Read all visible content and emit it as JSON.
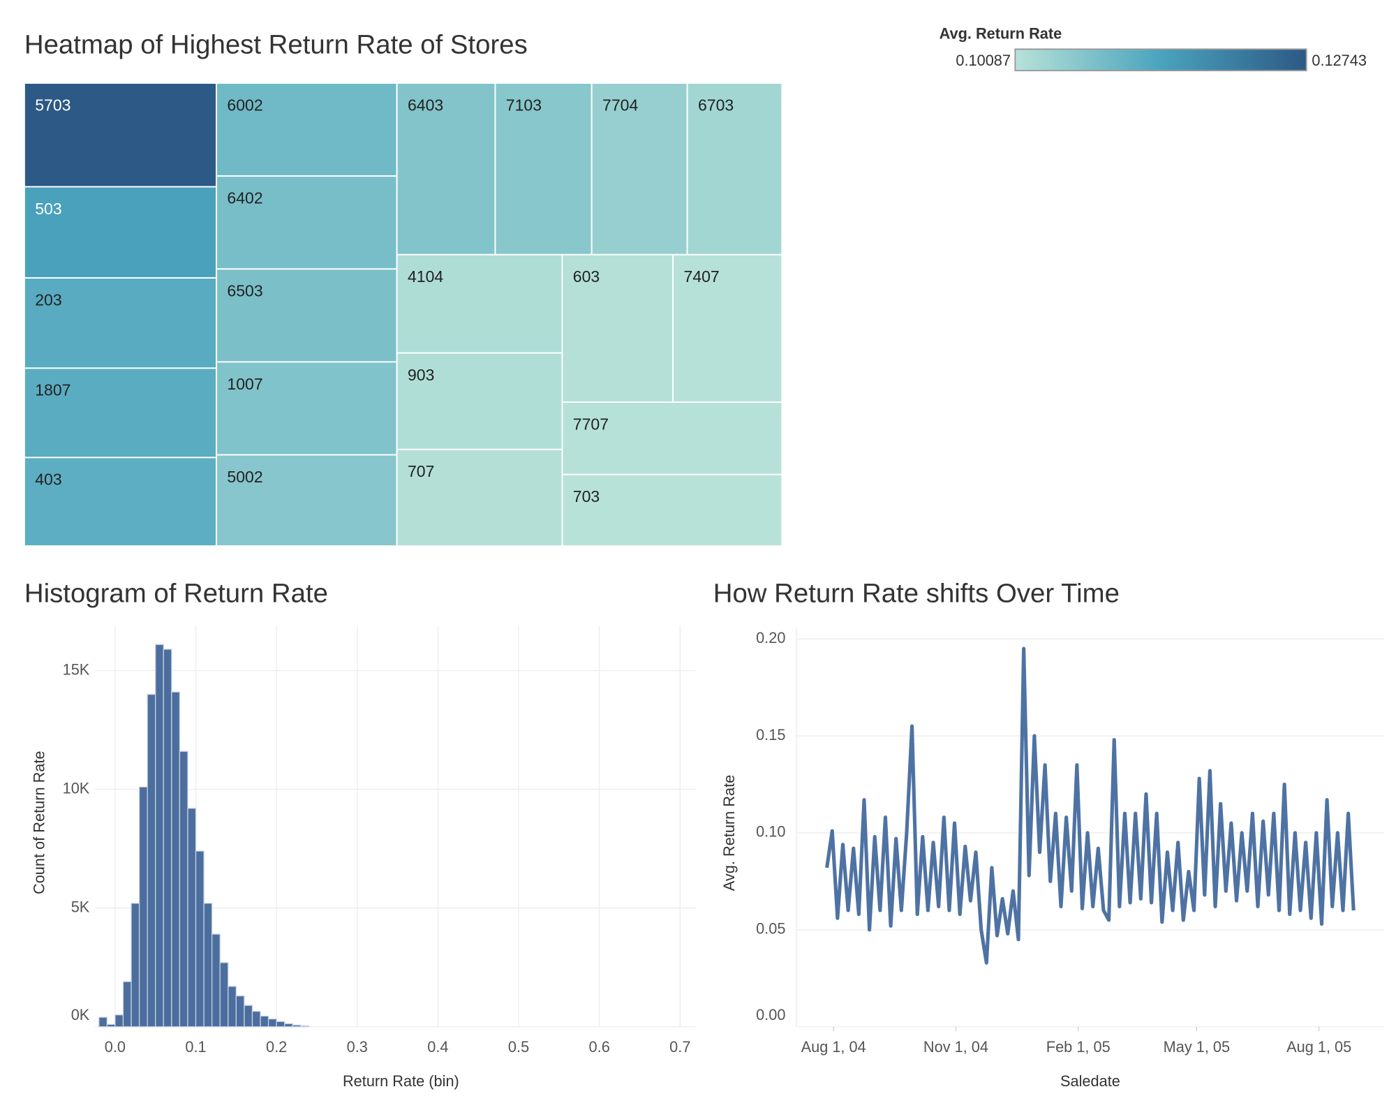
{
  "chart_data": [
    {
      "type": "treemap",
      "title": "Heatmap of Highest Return Rate of Stores",
      "categories": [
        "5703",
        "503",
        "203",
        "1807",
        "403",
        "6002",
        "6402",
        "6503",
        "1007",
        "5002",
        "6403",
        "7103",
        "7704",
        "6703",
        "4104",
        "903",
        "707",
        "603",
        "7407",
        "7707",
        "703"
      ],
      "values": [
        0.12743,
        0.1145,
        0.1125,
        0.1122,
        0.1118,
        0.1095,
        0.1085,
        0.1082,
        0.1075,
        0.1068,
        0.1072,
        0.1066,
        0.1048,
        0.1035,
        0.102,
        0.1018,
        0.1014,
        0.1012,
        0.1011,
        0.101,
        0.10087
      ],
      "colorscale": {
        "title": "Avg. Return Rate",
        "min": 0.10087,
        "max": 0.12743,
        "colors": [
          "#b7e2d8",
          "#4aa3bd",
          "#2c5985"
        ]
      }
    },
    {
      "type": "histogram",
      "title": "Histogram of Return Rate",
      "x_label": "Return Rate (bin)",
      "y_label": "Count of Return Rate",
      "bins": [
        -0.02,
        -0.01,
        0,
        0.01,
        0.02,
        0.03,
        0.04,
        0.05,
        0.06,
        0.07,
        0.08,
        0.09,
        0.1,
        0.11,
        0.12,
        0.13,
        0.14,
        0.15,
        0.16,
        0.17,
        0.18,
        0.19,
        0.2,
        0.21,
        0.22,
        0.23,
        0.24
      ],
      "values": [
        400,
        100,
        500,
        1900,
        5200,
        10100,
        14000,
        16100,
        15900,
        14100,
        11600,
        9200,
        7400,
        5200,
        3900,
        2700,
        1700,
        1300,
        900,
        650,
        450,
        330,
        220,
        130,
        70,
        40
      ],
      "color": "#4c6e9e",
      "grid": true,
      "xlim": [
        -0.025,
        0.72
      ],
      "ylim": [
        0,
        16900
      ],
      "xticks": [
        {
          "value": 0,
          "label": "0.0"
        },
        0.1,
        0.2,
        0.3,
        0.4,
        0.5,
        0.6,
        0.7
      ],
      "yticks": [
        {
          "value": 0,
          "label": "0K"
        },
        {
          "value": 5000,
          "label": "5K"
        },
        {
          "value": 10000,
          "label": "10K"
        },
        {
          "value": 15000,
          "label": "15K"
        }
      ]
    },
    {
      "type": "line",
      "title": "How Return Rate shifts Over Time",
      "x_label": "Saledate",
      "y_label": "Avg. Return Rate",
      "x": [
        "2004-07-27",
        "2004-07-31",
        "2004-08-04",
        "2004-08-08",
        "2004-08-12",
        "2004-08-16",
        "2004-08-20",
        "2004-08-24",
        "2004-08-28",
        "2004-09-01",
        "2004-09-05",
        "2004-09-09",
        "2004-09-13",
        "2004-09-17",
        "2004-09-21",
        "2004-09-25",
        "2004-09-29",
        "2004-10-03",
        "2004-10-07",
        "2004-10-11",
        "2004-10-15",
        "2004-10-19",
        "2004-10-23",
        "2004-10-27",
        "2004-10-31",
        "2004-11-04",
        "2004-11-08",
        "2004-11-12",
        "2004-11-16",
        "2004-11-20",
        "2004-11-24",
        "2004-11-28",
        "2004-12-02",
        "2004-12-06",
        "2004-12-10",
        "2004-12-14",
        "2004-12-18",
        "2004-12-22",
        "2004-12-26",
        "2004-12-30",
        "2005-01-03",
        "2005-01-07",
        "2005-01-11",
        "2005-01-15",
        "2005-01-19",
        "2005-01-23",
        "2005-01-27",
        "2005-01-31",
        "2005-02-04",
        "2005-02-08",
        "2005-02-12",
        "2005-02-16",
        "2005-02-20",
        "2005-02-24",
        "2005-02-28",
        "2005-03-04",
        "2005-03-08",
        "2005-03-12",
        "2005-03-16",
        "2005-03-20",
        "2005-03-24",
        "2005-03-28",
        "2005-04-01",
        "2005-04-05",
        "2005-04-09",
        "2005-04-13",
        "2005-04-17",
        "2005-04-21",
        "2005-04-25",
        "2005-04-29",
        "2005-05-03",
        "2005-05-07",
        "2005-05-11",
        "2005-05-15",
        "2005-05-19",
        "2005-05-23",
        "2005-05-27",
        "2005-05-31",
        "2005-06-04",
        "2005-06-08",
        "2005-06-12",
        "2005-06-16",
        "2005-06-20",
        "2005-06-24",
        "2005-06-28",
        "2005-07-02",
        "2005-07-06",
        "2005-07-10",
        "2005-07-14",
        "2005-07-18",
        "2005-07-22",
        "2005-07-26",
        "2005-07-30",
        "2005-08-03",
        "2005-08-07",
        "2005-08-11",
        "2005-08-15",
        "2005-08-19",
        "2005-08-23",
        "2005-08-27"
      ],
      "values": [
        0.082,
        0.101,
        0.056,
        0.094,
        0.06,
        0.092,
        0.058,
        0.117,
        0.05,
        0.098,
        0.06,
        0.108,
        0.052,
        0.097,
        0.06,
        0.1,
        0.155,
        0.058,
        0.098,
        0.06,
        0.095,
        0.062,
        0.108,
        0.06,
        0.105,
        0.058,
        0.093,
        0.065,
        0.09,
        0.05,
        0.033,
        0.082,
        0.047,
        0.066,
        0.048,
        0.07,
        0.045,
        0.195,
        0.078,
        0.15,
        0.09,
        0.135,
        0.075,
        0.11,
        0.062,
        0.108,
        0.07,
        0.135,
        0.061,
        0.1,
        0.062,
        0.092,
        0.06,
        0.055,
        0.148,
        0.062,
        0.11,
        0.064,
        0.11,
        0.066,
        0.12,
        0.064,
        0.11,
        0.054,
        0.09,
        0.06,
        0.095,
        0.055,
        0.08,
        0.06,
        0.128,
        0.068,
        0.132,
        0.062,
        0.115,
        0.07,
        0.105,
        0.065,
        0.1,
        0.07,
        0.11,
        0.062,
        0.106,
        0.068,
        0.11,
        0.06,
        0.125,
        0.058,
        0.1,
        0.06,
        0.095,
        0.056,
        0.1,
        0.053,
        0.117,
        0.062,
        0.1,
        0.06,
        0.11,
        0.06
      ],
      "color": "#4e72a3",
      "grid": true,
      "xlim": [
        "2004-07-04",
        "2005-09-19"
      ],
      "ylim": [
        0,
        0.2
      ],
      "xticks": [
        {
          "value": "2004-08-01",
          "label": "Aug 1, 04"
        },
        {
          "value": "2004-11-01",
          "label": "Nov 1, 04"
        },
        {
          "value": "2005-02-01",
          "label": "Feb 1, 05"
        },
        {
          "value": "2005-05-01",
          "label": "May 1, 05"
        },
        {
          "value": "2005-08-01",
          "label": "Aug 1, 05"
        }
      ],
      "yticks": [
        {
          "value": 0,
          "label": "0.00"
        },
        0.05,
        {
          "value": 0.1,
          "label": "0.10"
        },
        0.15,
        {
          "value": 0.2,
          "label": "0.20"
        }
      ]
    }
  ]
}
